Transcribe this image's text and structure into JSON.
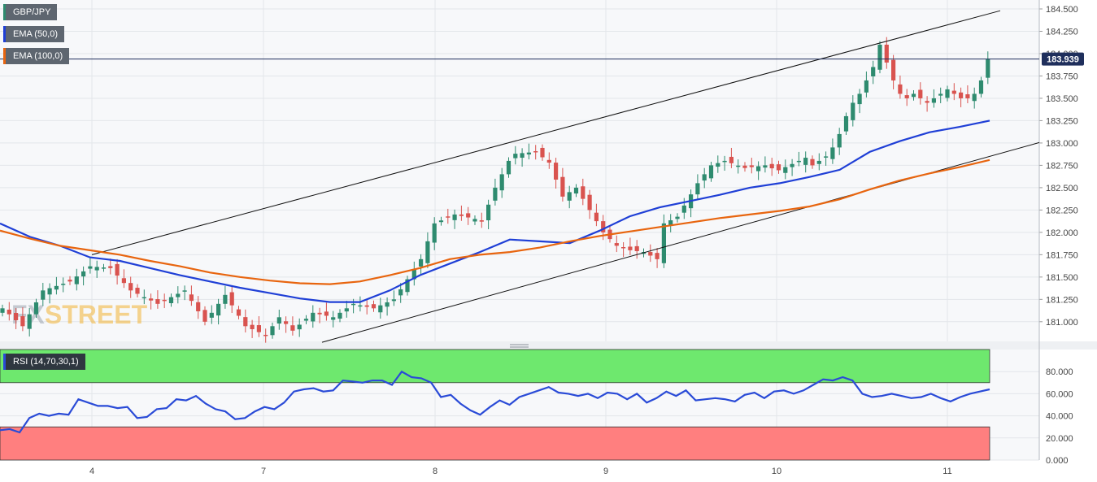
{
  "legend": {
    "symbol": "GBP/JPY",
    "ema50": "EMA (50,0)",
    "ema100": "EMA (100,0)",
    "rsi": "RSI (14,70,30,1)"
  },
  "watermark": {
    "left": "FX",
    "right": "STREET"
  },
  "price_label": "183.939",
  "colors": {
    "up": "#2e8b6f",
    "down": "#d9534f",
    "ema50": "#1f3fd6",
    "ema100": "#e8650f",
    "rsi_line": "#2a4bd7",
    "overbought_zone": "#6ee86e",
    "oversold_zone": "#ff7f7f",
    "price_line": "#1f2f5c"
  },
  "chart_data": [
    {
      "type": "candlestick",
      "title": "GBP/JPY",
      "x_tick_labels": [
        "4",
        "7",
        "8",
        "9",
        "10",
        "11"
      ],
      "y_ticks": [
        "181.000",
        "181.250",
        "181.500",
        "181.750",
        "182.000",
        "182.250",
        "182.500",
        "182.750",
        "183.000",
        "183.250",
        "183.500",
        "183.750",
        "184.000",
        "184.250",
        "184.500"
      ],
      "ylim": [
        180.78,
        184.6
      ],
      "current_price": 183.939,
      "grid": true,
      "series": [
        {
          "name": "EMA (50,0)",
          "values": [
            182.1,
            181.95,
            181.85,
            181.72,
            181.68,
            181.6,
            181.52,
            181.45,
            181.38,
            181.32,
            181.26,
            181.22,
            181.22,
            181.35,
            181.52,
            181.65,
            181.78,
            181.92,
            181.9,
            181.88,
            182.02,
            182.18,
            182.28,
            182.35,
            182.42,
            182.5,
            182.55,
            182.62,
            182.7,
            182.9,
            183.02,
            183.12,
            183.18,
            183.25
          ]
        },
        {
          "name": "EMA (100,0)",
          "values": [
            182.02,
            181.93,
            181.85,
            181.8,
            181.75,
            181.68,
            181.62,
            181.55,
            181.5,
            181.46,
            181.43,
            181.42,
            181.45,
            181.52,
            181.6,
            181.7,
            181.75,
            181.78,
            181.83,
            181.9,
            181.96,
            182.01,
            182.06,
            182.11,
            182.16,
            182.2,
            182.24,
            182.29,
            182.37,
            182.48,
            182.58,
            182.66,
            182.73,
            182.81
          ]
        }
      ],
      "channel": {
        "upper": [
          {
            "x": "4",
            "y": 181.75
          },
          {
            "x": "11",
            "y": 184.48
          }
        ],
        "lower": [
          {
            "x": "7",
            "y": 180.77
          },
          {
            "x": "11",
            "y": 182.75
          }
        ]
      }
    },
    {
      "type": "line",
      "title": "RSI (14,70,30,1)",
      "y_ticks": [
        "0.000",
        "20.000",
        "40.000",
        "60.000",
        "80.000"
      ],
      "ylim": [
        0,
        100
      ],
      "levels": {
        "overbought": 70,
        "oversold": 30
      },
      "series": [
        {
          "name": "RSI (14,70,30,1)",
          "values": [
            27,
            28,
            25,
            38,
            42,
            40,
            42,
            41,
            55,
            52,
            49,
            49,
            47,
            48,
            38,
            39,
            46,
            47,
            55,
            54,
            58,
            51,
            46,
            44,
            37,
            38,
            44,
            48,
            46,
            52,
            62,
            64,
            65,
            62,
            63,
            72,
            71,
            70,
            72,
            72,
            68,
            80,
            75,
            74,
            70,
            57,
            59,
            51,
            45,
            41,
            48,
            54,
            50,
            57,
            60,
            63,
            66,
            61,
            60,
            58,
            60,
            56,
            61,
            60,
            55,
            60,
            52,
            56,
            62,
            58,
            63,
            54,
            55,
            56,
            55,
            53,
            59,
            61,
            56,
            62,
            63,
            60,
            63,
            68,
            73,
            72,
            75,
            72,
            60,
            57,
            58,
            60,
            58,
            56,
            57,
            60,
            56,
            53,
            57,
            60,
            62,
            64
          ]
        }
      ]
    }
  ]
}
